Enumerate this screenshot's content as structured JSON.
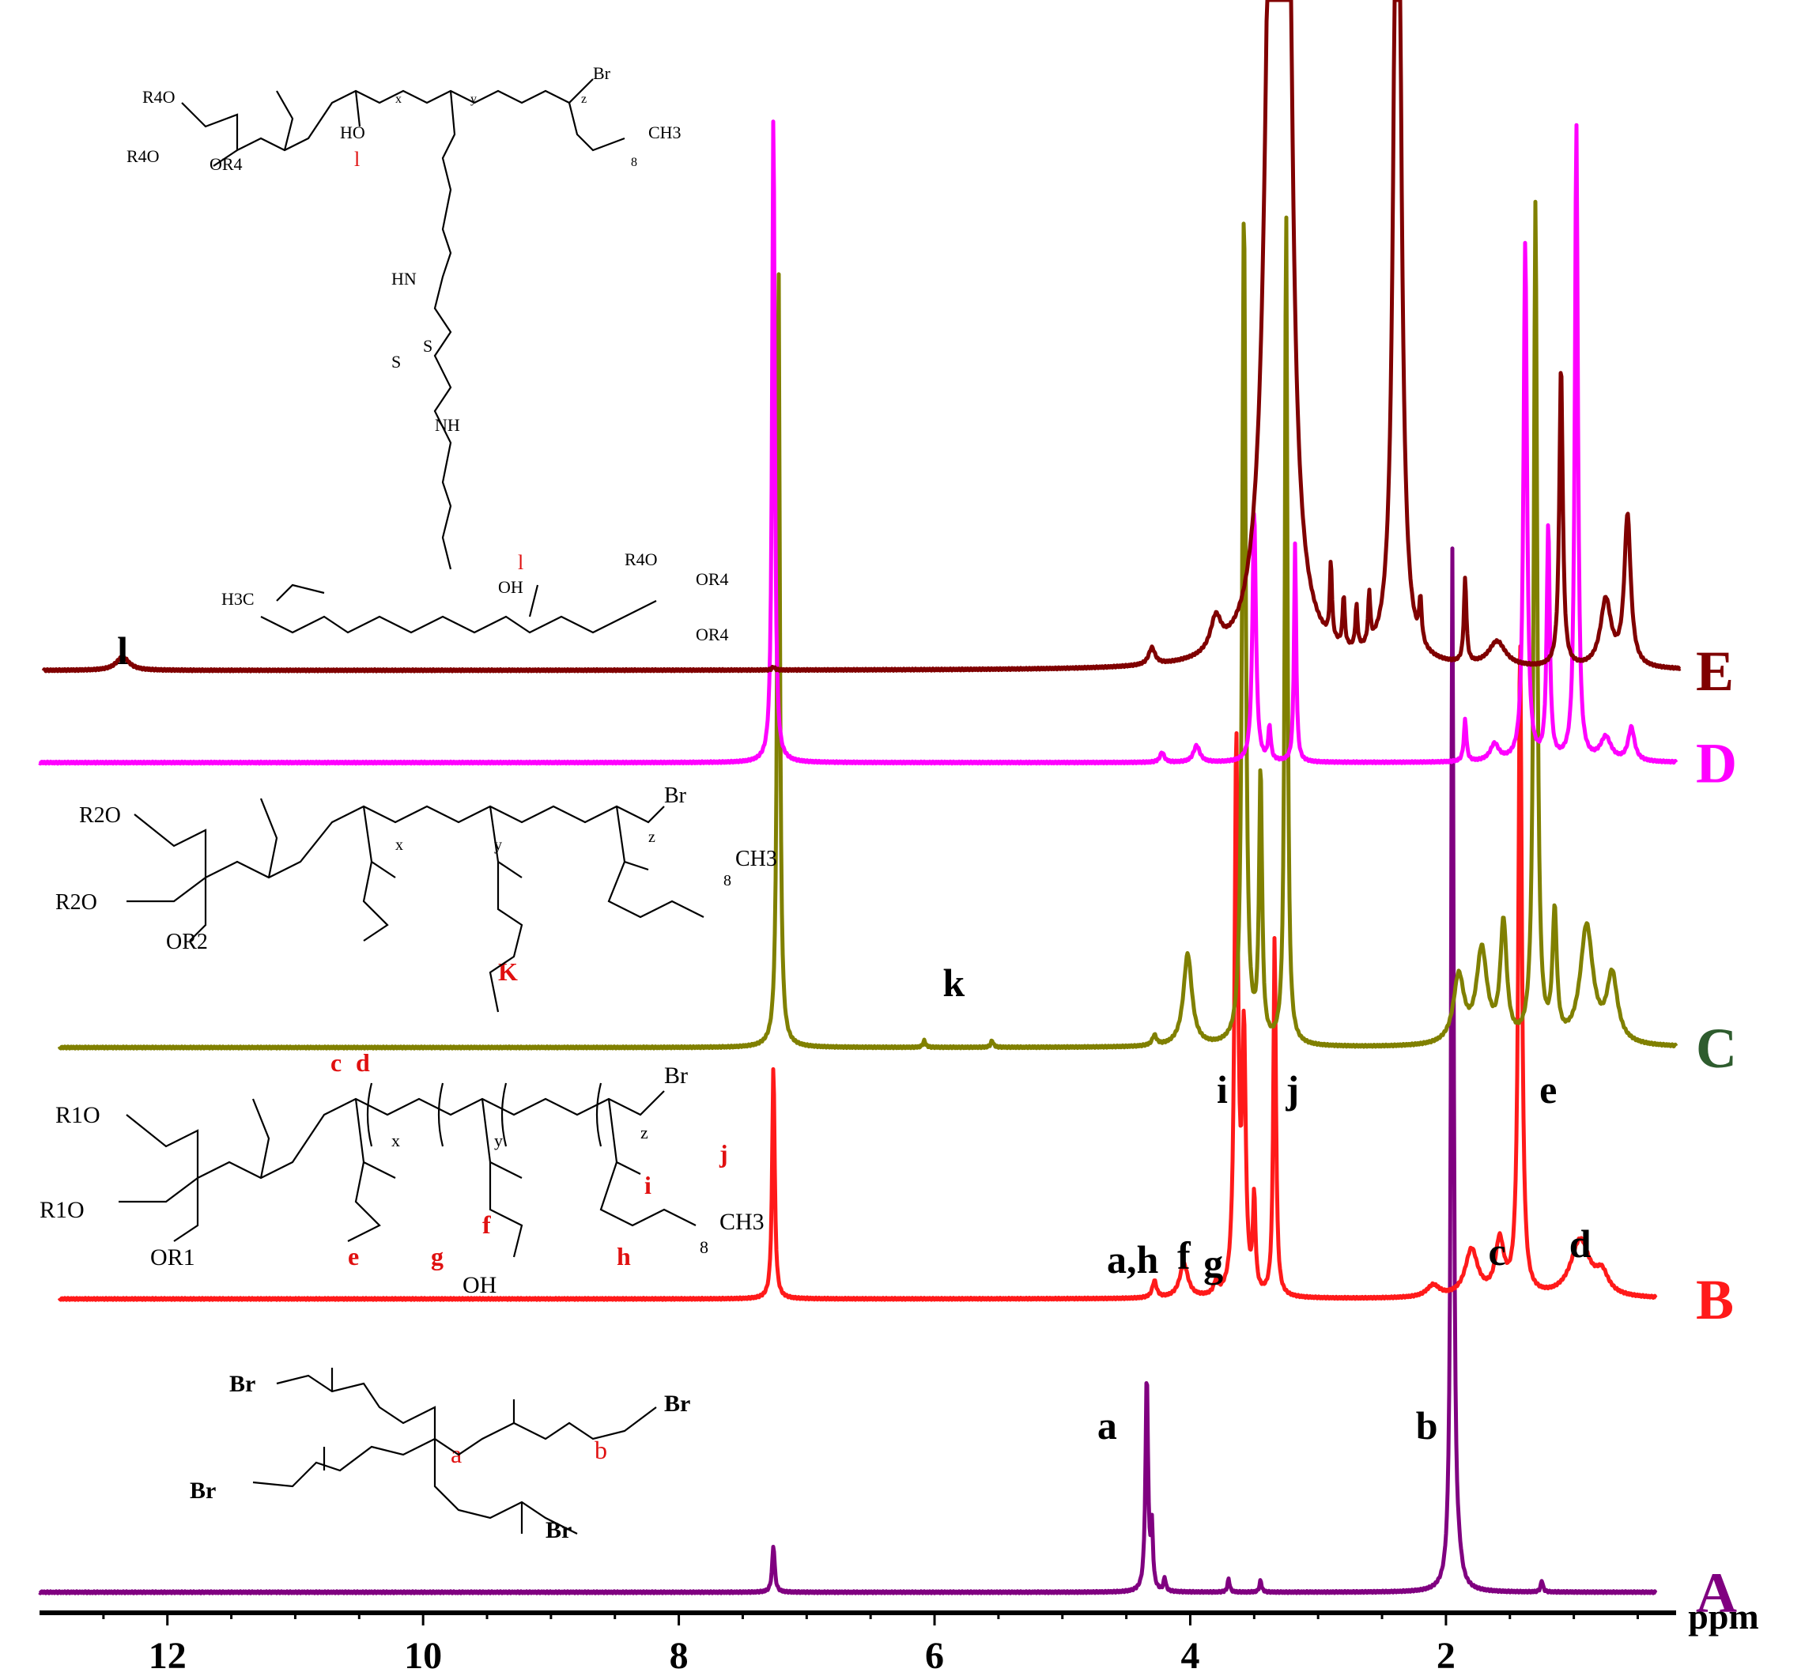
{
  "chart_data": {
    "type": "line",
    "title": "",
    "xlabel": "ppm",
    "ylabel": "",
    "xlim": [
      13.0,
      0.2
    ],
    "x_reversed": true,
    "grid": false,
    "legend": "right, spectrum letters",
    "x_ticks": [
      12,
      10,
      8,
      6,
      4,
      2
    ],
    "series": [
      {
        "name": "A",
        "color": "#800080",
        "baseline": 0.95,
        "peaks": [
          {
            "ppm": 7.26,
            "h": 0.028,
            "w": 0.012
          },
          {
            "ppm": 4.34,
            "h": 0.13,
            "w": 0.012
          },
          {
            "ppm": 4.3,
            "h": 0.035,
            "w": 0.01
          },
          {
            "ppm": 4.2,
            "h": 0.008,
            "w": 0.01
          },
          {
            "ppm": 3.7,
            "h": 0.008,
            "w": 0.01
          },
          {
            "ppm": 3.45,
            "h": 0.007,
            "w": 0.01
          },
          {
            "ppm": 1.95,
            "h": 0.62,
            "w": 0.012
          },
          {
            "ppm": 1.9,
            "h": 0.01,
            "w": 0.03
          },
          {
            "ppm": 1.25,
            "h": 0.007,
            "w": 0.01
          }
        ]
      },
      {
        "name": "B",
        "color": "#ff1a1a",
        "baseline": 0.775,
        "peaks": [
          {
            "ppm": 7.26,
            "h": 0.14,
            "w": 0.012
          },
          {
            "ppm": 4.28,
            "h": 0.01,
            "w": 0.02
          },
          {
            "ppm": 4.05,
            "h": 0.02,
            "w": 0.04
          },
          {
            "ppm": 3.8,
            "h": 0.007,
            "w": 0.02
          },
          {
            "ppm": 3.64,
            "h": 0.33,
            "w": 0.016
          },
          {
            "ppm": 3.58,
            "h": 0.15,
            "w": 0.016
          },
          {
            "ppm": 3.5,
            "h": 0.055,
            "w": 0.012
          },
          {
            "ppm": 3.34,
            "h": 0.215,
            "w": 0.012
          },
          {
            "ppm": 2.1,
            "h": 0.007,
            "w": 0.06
          },
          {
            "ppm": 1.8,
            "h": 0.028,
            "w": 0.06
          },
          {
            "ppm": 1.58,
            "h": 0.032,
            "w": 0.04
          },
          {
            "ppm": 1.42,
            "h": 0.39,
            "w": 0.016
          },
          {
            "ppm": 0.95,
            "h": 0.034,
            "w": 0.09
          },
          {
            "ppm": 0.78,
            "h": 0.012,
            "w": 0.06
          }
        ]
      },
      {
        "name": "C",
        "color": "#808000",
        "baseline": 0.625,
        "peaks": [
          {
            "ppm": 7.22,
            "h": 0.47,
            "w": 0.012
          },
          {
            "ppm": 6.08,
            "h": 0.004,
            "w": 0.012
          },
          {
            "ppm": 5.55,
            "h": 0.004,
            "w": 0.012
          },
          {
            "ppm": 4.28,
            "h": 0.006,
            "w": 0.02
          },
          {
            "ppm": 4.02,
            "h": 0.055,
            "w": 0.04
          },
          {
            "ppm": 3.58,
            "h": 0.5,
            "w": 0.016
          },
          {
            "ppm": 3.45,
            "h": 0.16,
            "w": 0.014
          },
          {
            "ppm": 3.25,
            "h": 0.5,
            "w": 0.012
          },
          {
            "ppm": 1.9,
            "h": 0.04,
            "w": 0.05
          },
          {
            "ppm": 1.72,
            "h": 0.055,
            "w": 0.05
          },
          {
            "ppm": 1.55,
            "h": 0.07,
            "w": 0.03
          },
          {
            "ppm": 1.3,
            "h": 0.5,
            "w": 0.016
          },
          {
            "ppm": 1.15,
            "h": 0.075,
            "w": 0.02
          },
          {
            "ppm": 0.9,
            "h": 0.07,
            "w": 0.06
          },
          {
            "ppm": 0.7,
            "h": 0.04,
            "w": 0.05
          }
        ]
      },
      {
        "name": "D",
        "color": "#ff00ff",
        "baseline": 0.455,
        "peaks": [
          {
            "ppm": 7.26,
            "h": 0.39,
            "w": 0.012
          },
          {
            "ppm": 4.22,
            "h": 0.006,
            "w": 0.02
          },
          {
            "ppm": 3.95,
            "h": 0.01,
            "w": 0.03
          },
          {
            "ppm": 3.5,
            "h": 0.15,
            "w": 0.016
          },
          {
            "ppm": 3.38,
            "h": 0.02,
            "w": 0.012
          },
          {
            "ppm": 3.18,
            "h": 0.13,
            "w": 0.01
          },
          {
            "ppm": 1.85,
            "h": 0.025,
            "w": 0.012
          },
          {
            "ppm": 1.62,
            "h": 0.01,
            "w": 0.04
          },
          {
            "ppm": 1.38,
            "h": 0.31,
            "w": 0.016
          },
          {
            "ppm": 1.2,
            "h": 0.14,
            "w": 0.014
          },
          {
            "ppm": 0.98,
            "h": 0.38,
            "w": 0.014
          },
          {
            "ppm": 0.75,
            "h": 0.014,
            "w": 0.05
          },
          {
            "ppm": 0.55,
            "h": 0.02,
            "w": 0.03
          }
        ]
      },
      {
        "name": "E",
        "color": "#800000",
        "baseline": 0.4,
        "peaks": [
          {
            "ppm": 12.35,
            "h": 0.008,
            "w": 0.06
          },
          {
            "ppm": 7.26,
            "h": 0.002,
            "w": 0.012
          },
          {
            "ppm": 4.3,
            "h": 0.01,
            "w": 0.03
          },
          {
            "ppm": 3.8,
            "h": 0.02,
            "w": 0.05
          },
          {
            "ppm": 3.35,
            "h": 0.62,
            "w": 0.06
          },
          {
            "ppm": 3.25,
            "h": 0.6,
            "w": 0.04
          },
          {
            "ppm": 2.9,
            "h": 0.045,
            "w": 0.01
          },
          {
            "ppm": 2.8,
            "h": 0.03,
            "w": 0.01
          },
          {
            "ppm": 2.7,
            "h": 0.025,
            "w": 0.01
          },
          {
            "ppm": 2.6,
            "h": 0.03,
            "w": 0.01
          },
          {
            "ppm": 2.38,
            "h": 0.65,
            "w": 0.03
          },
          {
            "ppm": 2.2,
            "h": 0.025,
            "w": 0.012
          },
          {
            "ppm": 1.85,
            "h": 0.05,
            "w": 0.012
          },
          {
            "ppm": 1.6,
            "h": 0.015,
            "w": 0.08
          },
          {
            "ppm": 1.1,
            "h": 0.18,
            "w": 0.016
          },
          {
            "ppm": 0.75,
            "h": 0.04,
            "w": 0.05
          },
          {
            "ppm": 0.58,
            "h": 0.09,
            "w": 0.03
          }
        ]
      }
    ],
    "peak_labels": [
      {
        "text": "a",
        "series": "A",
        "ppm": 4.65
      },
      {
        "text": "b",
        "series": "A",
        "ppm": 2.15
      },
      {
        "text": "a,h",
        "series": "B",
        "ppm": 4.45
      },
      {
        "text": "f",
        "series": "B",
        "ppm": 4.05
      },
      {
        "text": "g",
        "series": "B",
        "ppm": 3.82
      },
      {
        "text": "i",
        "series": "B",
        "ppm": 3.75
      },
      {
        "text": "j",
        "series": "B",
        "ppm": 3.2
      },
      {
        "text": "c",
        "series": "B",
        "ppm": 1.6
      },
      {
        "text": "d",
        "series": "B",
        "ppm": 0.95
      },
      {
        "text": "e",
        "series": "B",
        "ppm": 1.2
      },
      {
        "text": "k",
        "series": "C",
        "ppm": 5.85
      },
      {
        "text": "l",
        "series": "E",
        "ppm": 12.35
      }
    ]
  },
  "structures": {
    "A": {
      "labels": [
        "Br",
        "Br",
        "Br",
        "Br",
        "a",
        "b"
      ]
    },
    "B": {
      "labels": [
        "R1O",
        "R1O",
        "OR1",
        "c",
        "d",
        "x",
        "y",
        "z",
        "Br",
        "e",
        "g",
        "f",
        "OH",
        "h",
        "i",
        "j",
        "CH3",
        "8"
      ]
    },
    "C": {
      "labels": [
        "R2O",
        "R2O",
        "OR2",
        "x",
        "y",
        "z",
        "Br",
        "K",
        "CH3",
        "8"
      ]
    },
    "E": {
      "labels": [
        "R4O",
        "R4O",
        "OR4",
        "HO",
        "l",
        "x",
        "y",
        "z",
        "Br",
        "CH3",
        "8",
        "HN",
        "S",
        "S",
        "NH",
        "H3C",
        "OH",
        "l",
        "R4O",
        "OR4",
        "OR4"
      ]
    }
  }
}
